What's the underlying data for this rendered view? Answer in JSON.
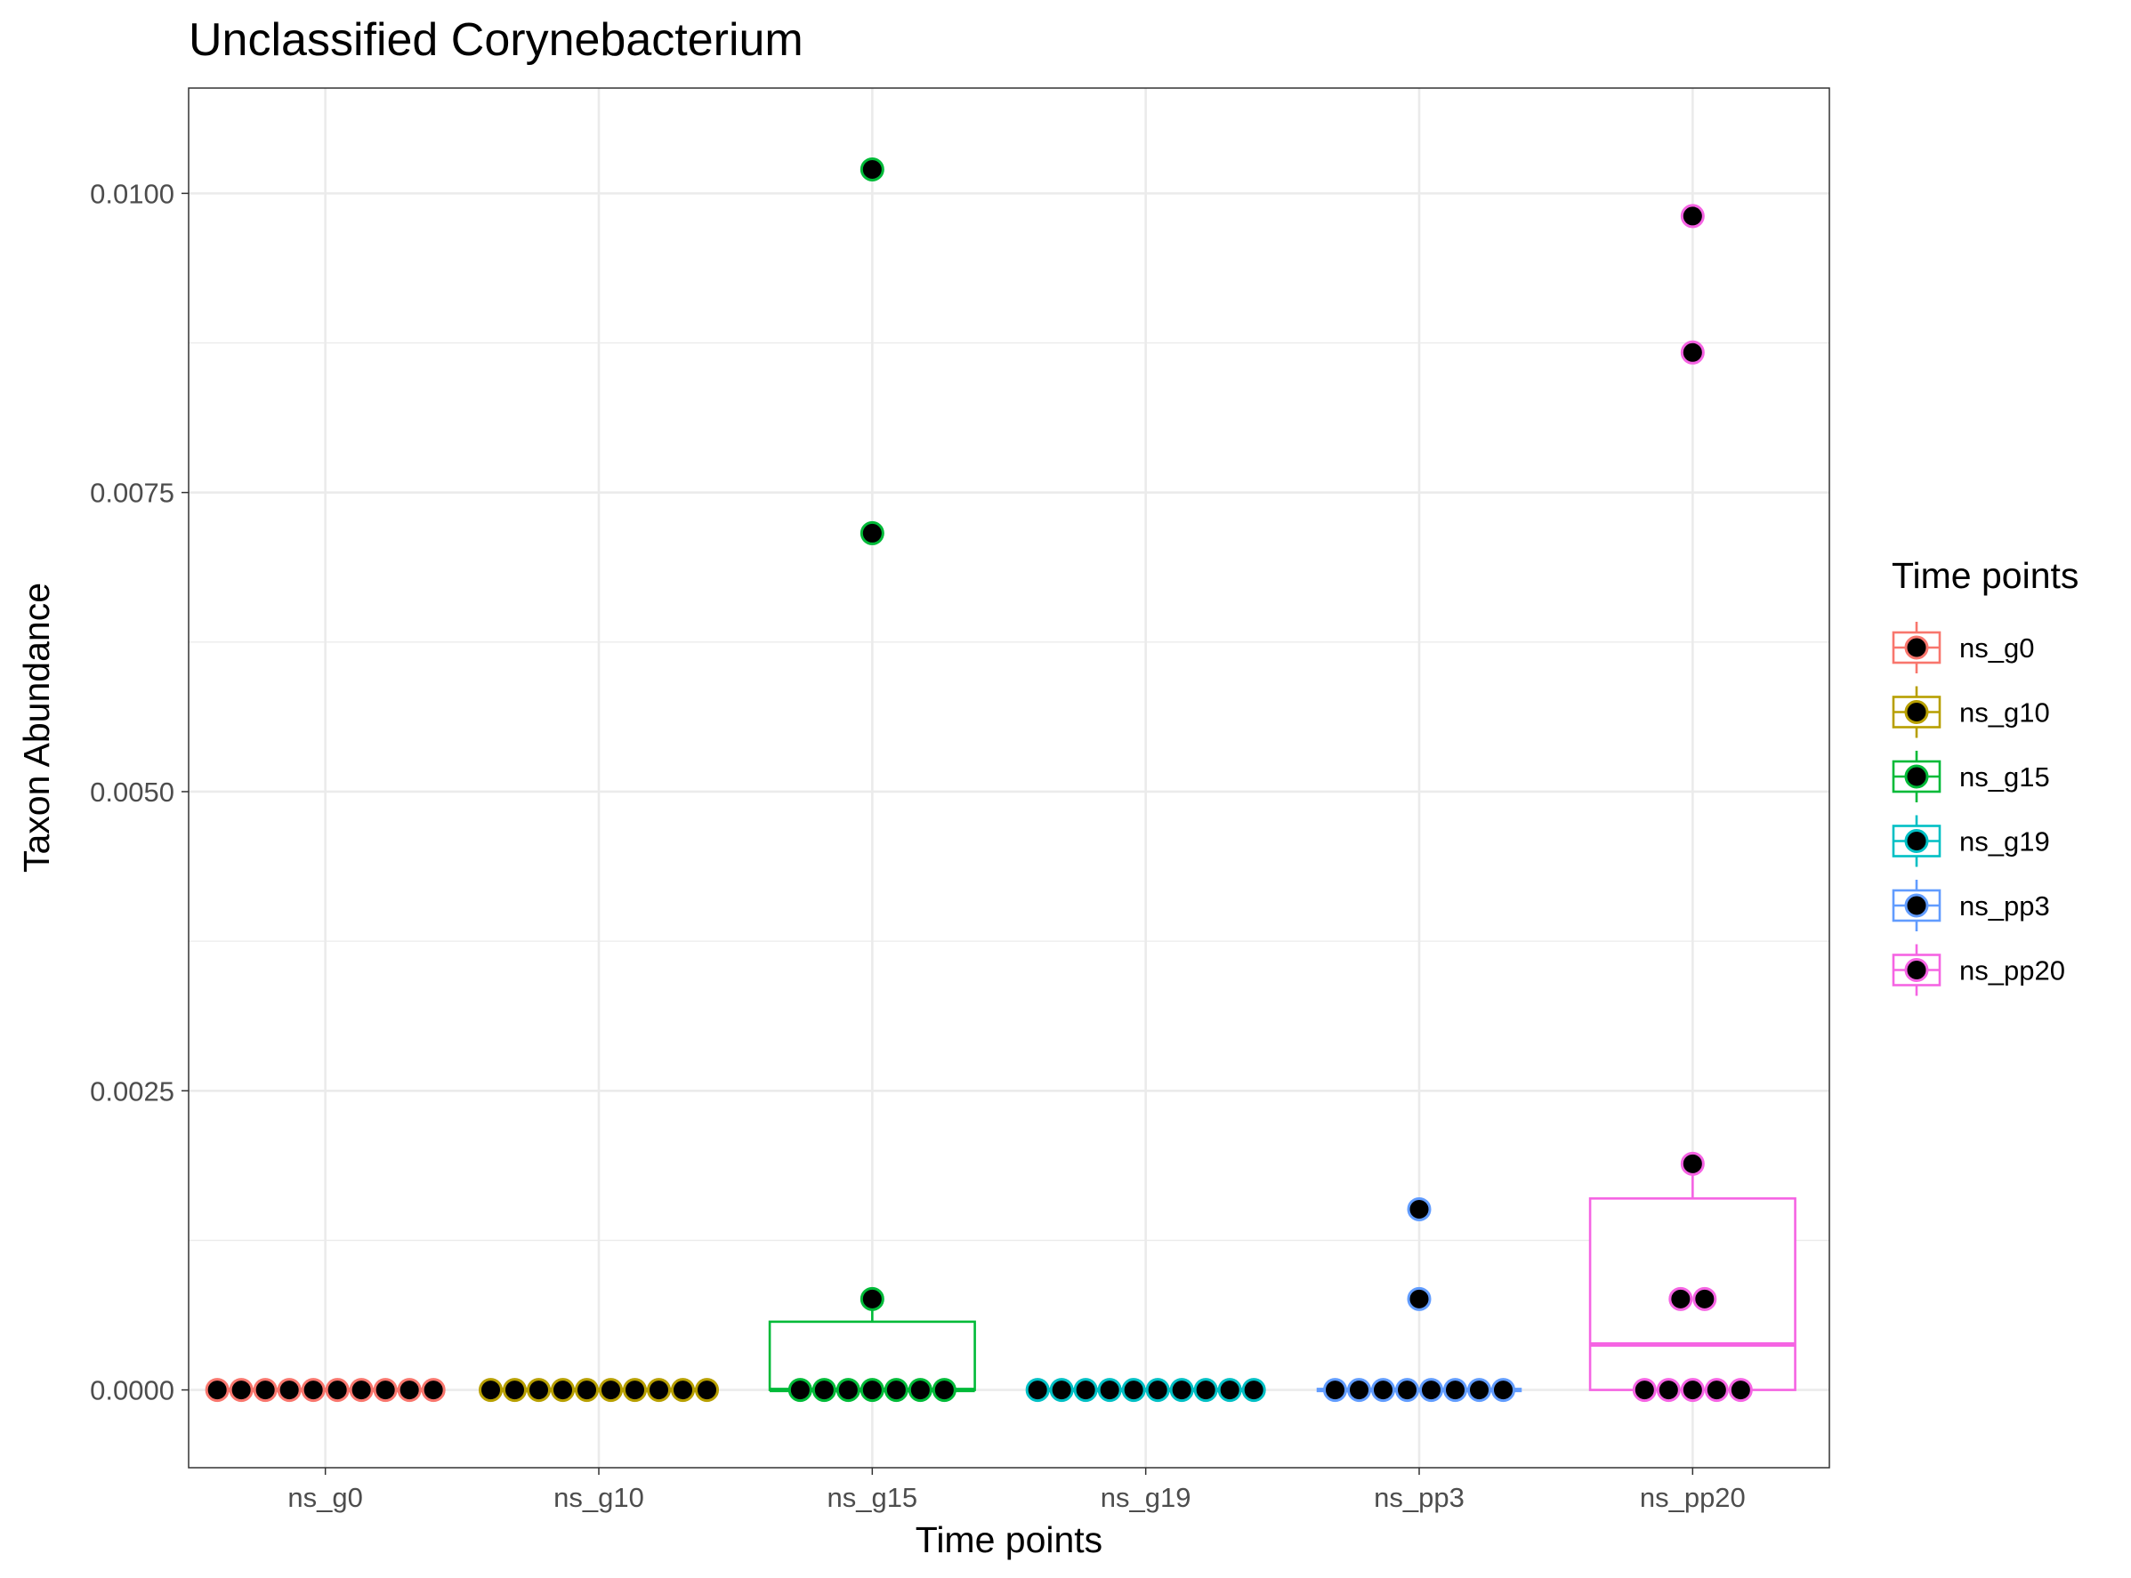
{
  "chart_data": {
    "type": "box",
    "title": "Unclassified  Corynebacterium",
    "xlabel": "Time points",
    "ylabel": "Taxon Abundance",
    "ylim": [
      -0.00065,
      0.01088
    ],
    "yticks": [
      0.0,
      0.0025,
      0.005,
      0.0075,
      0.01
    ],
    "ytick_labels": [
      "0.0000",
      "0.0025",
      "0.0050",
      "0.0075",
      "0.0100"
    ],
    "categories": [
      "ns_g0",
      "ns_g10",
      "ns_g15",
      "ns_g19",
      "ns_pp3",
      "ns_pp20"
    ],
    "grid": true,
    "legend": {
      "title": "Time points",
      "placement": "right",
      "entries": [
        "ns_g0",
        "ns_g10",
        "ns_g15",
        "ns_g19",
        "ns_pp3",
        "ns_pp20"
      ]
    },
    "series": [
      {
        "name": "ns_g0",
        "color": "#F8766D",
        "box": {
          "q1": 0.0,
          "median": 0.0,
          "q3": 0.0,
          "whisker_low": 0.0,
          "whisker_high": 0.0
        },
        "points": [
          0,
          0,
          0,
          0,
          0,
          0,
          0,
          0,
          0,
          0
        ]
      },
      {
        "name": "ns_g10",
        "color": "#B79F00",
        "box": {
          "q1": 0.0,
          "median": 0.0,
          "q3": 0.0,
          "whisker_low": 0.0,
          "whisker_high": 0.0
        },
        "points": [
          0,
          0,
          0,
          0,
          0,
          0,
          0,
          0,
          0,
          0
        ]
      },
      {
        "name": "ns_g15",
        "color": "#00BA38",
        "box": {
          "q1": 0.0,
          "median": 0.0,
          "q3": 0.00057,
          "whisker_low": 0.0,
          "whisker_high": 0.00076
        },
        "points": [
          0,
          0,
          0,
          0,
          0,
          0,
          0,
          0.00076,
          0.00716,
          0.0102
        ]
      },
      {
        "name": "ns_g19",
        "color": "#00BFC4",
        "box": {
          "q1": 0.0,
          "median": 0.0,
          "q3": 0.0,
          "whisker_low": 0.0,
          "whisker_high": 0.0
        },
        "points": [
          0,
          0,
          0,
          0,
          0,
          0,
          0,
          0,
          0,
          0
        ]
      },
      {
        "name": "ns_pp3",
        "color": "#619CFF",
        "box": {
          "q1": 0.0,
          "median": 0.0,
          "q3": 0.0,
          "whisker_low": 0.0,
          "whisker_high": 0.0
        },
        "points": [
          0,
          0,
          0,
          0,
          0,
          0,
          0,
          0,
          0.00076,
          0.00151
        ]
      },
      {
        "name": "ns_pp20",
        "color": "#F564E3",
        "box": {
          "q1": 0.0,
          "median": 0.00038,
          "q3": 0.0016,
          "whisker_low": 0.0,
          "whisker_high": 0.00189
        },
        "points": [
          0,
          0,
          0,
          0,
          0,
          0.00076,
          0.00076,
          0.00189,
          0.00867,
          0.00981
        ]
      }
    ]
  }
}
